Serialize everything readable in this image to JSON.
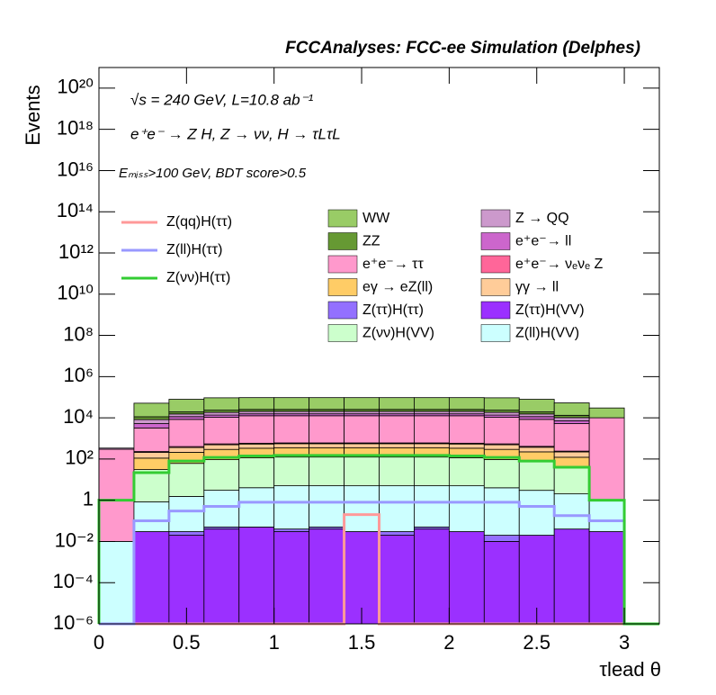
{
  "chart_data": {
    "type": "histogram",
    "title": "FCCAnalyses: FCC-ee Simulation (Delphes)",
    "annotations": [
      "√s = 240 GeV, L=10.8 ab⁻¹",
      "e⁺e⁻ → Z H, Z → νν, H → τLτL",
      "Eₘᵢₛₛ>100 GeV, BDT score>0.5"
    ],
    "x_label": "τlead θ",
    "y_label": "Events",
    "log_y": true,
    "bins": [
      0,
      0.2,
      0.4,
      0.6,
      0.8,
      1.0,
      1.2,
      1.4,
      1.6,
      1.8,
      2.0,
      2.2,
      2.4,
      2.6,
      2.8,
      3.0,
      3.2
    ],
    "xlim": [
      0,
      3.2
    ],
    "xticks": [
      0,
      0.5,
      1,
      1.5,
      2,
      2.5,
      3
    ],
    "ylim": [
      1e-06,
      1e+21
    ],
    "yticks": [
      {
        "value": 1e-06,
        "label": "10⁻⁶"
      },
      {
        "value": 0.0001,
        "label": "10⁻⁴"
      },
      {
        "value": 0.01,
        "label": "10⁻²"
      },
      1,
      {
        "value": 100,
        "label": "10²"
      },
      {
        "value": 10000.0,
        "label": "10⁴"
      },
      {
        "value": 1000000.0,
        "label": "10⁶"
      },
      {
        "value": 100000000.0,
        "label": "10⁸"
      },
      {
        "value": 10000000000.0,
        "label": "10¹⁰"
      },
      {
        "value": 1000000000000.0,
        "label": "10¹²"
      },
      {
        "value": 100000000000000.0,
        "label": "10¹⁴"
      },
      {
        "value": 1e+16,
        "label": "10¹⁶"
      },
      {
        "value": 1e+18,
        "label": "10¹⁸"
      },
      {
        "value": 1e+20,
        "label": "10²⁰"
      }
    ],
    "series": [
      {
        "name": "Z(ττ)H(VV)",
        "color": "#9b30ff",
        "values": [
          0,
          0.03,
          0.02,
          0.04,
          0.05,
          0.03,
          0.04,
          0.03,
          0.02,
          0.04,
          0.03,
          0.01,
          0.02,
          0.04,
          0.03,
          0
        ]
      },
      {
        "name": "Z(ττ)H(ττ)",
        "color": "#9370ff",
        "values": [
          0,
          0,
          0.01,
          0.01,
          0,
          0.01,
          0.01,
          0,
          0.01,
          0.01,
          0,
          0.01,
          0,
          0,
          0,
          0
        ]
      },
      {
        "name": "Z(ll)H(VV)",
        "color": "#ccffff",
        "values": [
          0.01,
          0.8,
          1.5,
          3,
          4,
          5,
          5,
          5,
          5,
          5,
          5,
          4,
          3,
          2,
          1,
          0
        ]
      },
      {
        "name": "Z(νν)H(VV)",
        "color": "#ccffcc",
        "values": [
          0,
          30,
          60,
          90,
          110,
          120,
          120,
          120,
          120,
          120,
          110,
          90,
          70,
          40,
          0,
          0
        ]
      },
      {
        "name": "eγ → eZ(ll)",
        "color": "#ffcc66",
        "values": [
          0,
          80,
          150,
          200,
          220,
          230,
          230,
          230,
          230,
          230,
          220,
          200,
          150,
          80,
          0,
          0
        ]
      },
      {
        "name": "γγ → ll",
        "color": "#ffcc99",
        "values": [
          0,
          100,
          150,
          200,
          200,
          200,
          200,
          200,
          200,
          200,
          200,
          200,
          150,
          100,
          0,
          0
        ]
      },
      {
        "name": "e⁺e⁻→ νₑνₑ Z",
        "color": "#ff6699",
        "values": [
          0,
          20,
          40,
          50,
          50,
          50,
          50,
          50,
          50,
          50,
          50,
          50,
          40,
          20,
          0,
          0
        ]
      },
      {
        "name": "e⁺e⁻→ ττ",
        "color": "#ff99cc",
        "values": [
          300,
          3000,
          8000,
          10000,
          12000,
          12000,
          12000,
          12000,
          12000,
          12000,
          12000,
          10000,
          8000,
          5000,
          10000,
          0
        ]
      },
      {
        "name": "e⁺e⁻→ ll",
        "color": "#cc66cc",
        "values": [
          0,
          2000,
          3000,
          3000,
          3000,
          3000,
          3000,
          3000,
          3000,
          3000,
          3000,
          3000,
          3000,
          2000,
          0,
          0
        ]
      },
      {
        "name": "Z → QQ",
        "color": "#cc99cc",
        "values": [
          40,
          3000,
          4000,
          5000,
          5000,
          5000,
          5000,
          5000,
          5000,
          5000,
          5000,
          5000,
          4000,
          3000,
          60,
          0
        ]
      },
      {
        "name": "ZZ",
        "color": "#669933",
        "values": [
          0,
          3000,
          4000,
          5000,
          5000,
          5000,
          5000,
          5000,
          5000,
          5000,
          5000,
          5000,
          4000,
          3000,
          0,
          0
        ]
      },
      {
        "name": "WW",
        "color": "#99cc66",
        "values": [
          0,
          40000,
          60000,
          70000,
          70000,
          70000,
          70000,
          70000,
          70000,
          70000,
          70000,
          70000,
          60000,
          40000,
          20000,
          0
        ]
      }
    ],
    "lines": [
      {
        "name": "Z(qq)H(ττ)",
        "color": "#ff9999",
        "values": [
          0,
          0,
          0,
          0,
          0,
          0,
          0,
          0.2,
          0,
          0,
          0,
          0,
          0,
          0,
          0,
          0
        ]
      },
      {
        "name": "Z(ll)H(ττ)",
        "color": "#9999ff",
        "values": [
          0,
          0.1,
          0.3,
          0.5,
          0.8,
          0.8,
          0.8,
          0.8,
          0.8,
          0.8,
          0.8,
          0.8,
          0.5,
          0.18,
          0.1,
          0
        ]
      },
      {
        "name": "Z(νν)H(ττ)",
        "color": "#33cc33",
        "values": [
          1,
          22,
          80,
          120,
          140,
          150,
          150,
          150,
          150,
          150,
          140,
          120,
          80,
          40,
          1,
          0
        ]
      }
    ]
  }
}
